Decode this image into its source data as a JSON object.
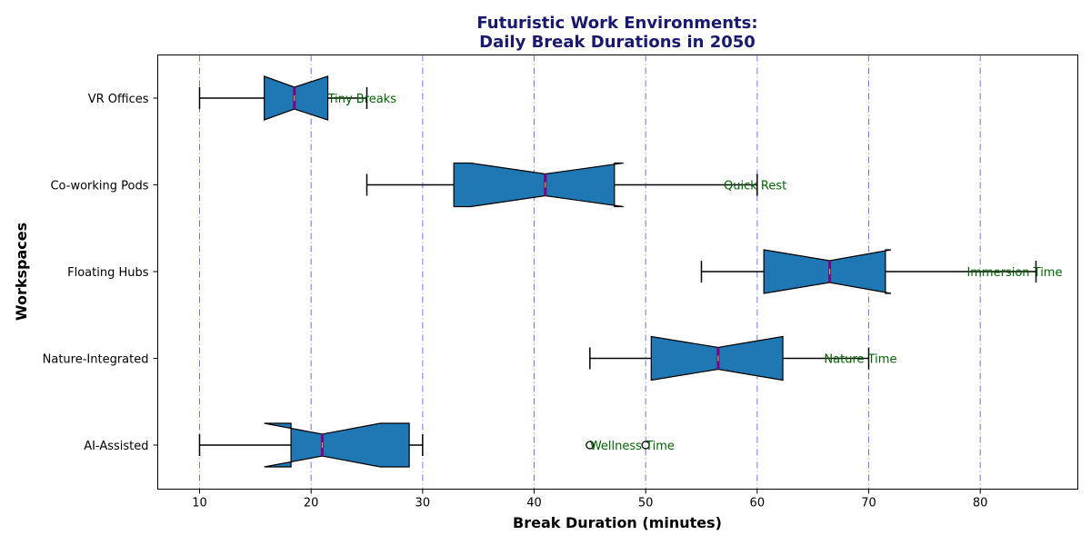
{
  "colors": {
    "title": "#191970",
    "box_fill": "#1f77b4",
    "median": "#800080",
    "mean_dash": "#bcbd22",
    "grid": "#0000ff",
    "annotation": "#006400"
  },
  "chart_data": {
    "type": "boxplot",
    "orientation": "horizontal",
    "notched": true,
    "title_line1": "Futuristic Work Environments:",
    "title_line2": "Daily Break Durations in 2050",
    "xlabel": "Break Duration (minutes)",
    "ylabel": "Workspaces",
    "xlim": [
      6.25,
      88.75
    ],
    "xticks": [
      10,
      20,
      30,
      40,
      50,
      60,
      70,
      80
    ],
    "grid": "vertical dash-dot",
    "categories": [
      "AI-Assisted",
      "Nature-Integrated",
      "Floating Hubs",
      "Co-working Pods",
      "VR Offices"
    ],
    "boxes": [
      {
        "label": "AI-Assisted",
        "whisker_low": 10,
        "q1": 18.2,
        "median": 21,
        "q3": 28.8,
        "whisker_high": 30,
        "notch_low": 15.8,
        "notch_high": 26.2,
        "outliers": [
          45,
          50
        ],
        "annotation": "Wellness Time",
        "annotation_x": 45
      },
      {
        "label": "Nature-Integrated",
        "whisker_low": 45,
        "q1": 50.5,
        "median": 56.5,
        "q3": 62.3,
        "whisker_high": 70,
        "notch_low": 50.5,
        "notch_high": 62.3,
        "outliers": [],
        "annotation": "Nature Time",
        "annotation_x": 66
      },
      {
        "label": "Floating Hubs",
        "whisker_low": 55,
        "q1": 60.6,
        "median": 66.5,
        "q3": 71.5,
        "whisker_high": 85,
        "notch_low": 60.6,
        "notch_high": 72,
        "outliers": [],
        "annotation": "Immersion Time",
        "annotation_x": 78.8
      },
      {
        "label": "Co-working Pods",
        "whisker_low": 25,
        "q1": 32.8,
        "median": 41,
        "q3": 47.2,
        "whisker_high": 60,
        "notch_low": 34.3,
        "notch_high": 48,
        "outliers": [],
        "annotation": "Quick Rest",
        "annotation_x": 57
      },
      {
        "label": "VR Offices",
        "whisker_low": 10,
        "q1": 15.8,
        "median": 18.5,
        "q3": 21.5,
        "whisker_high": 25,
        "notch_low": 15.8,
        "notch_high": 21.5,
        "outliers": [],
        "annotation": "Tiny Breaks",
        "annotation_x": 21.5
      }
    ]
  }
}
